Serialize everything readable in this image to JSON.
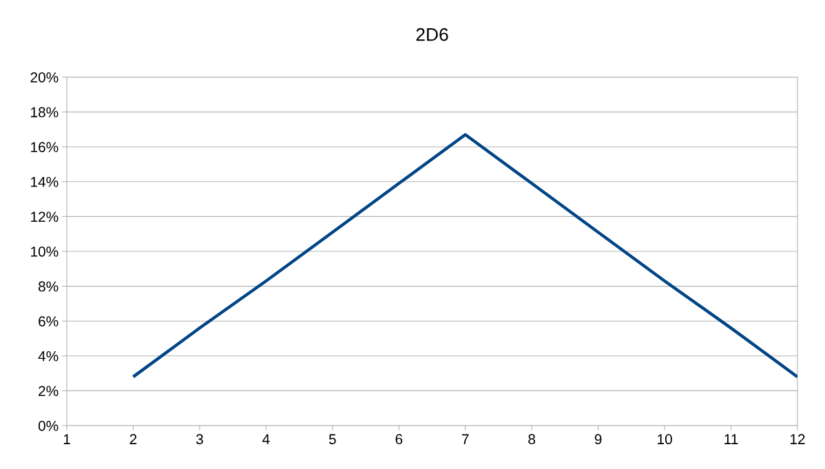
{
  "chart_data": {
    "type": "line",
    "title": "2D6",
    "x": [
      2,
      3,
      4,
      5,
      6,
      7,
      8,
      9,
      10,
      11,
      12
    ],
    "series": [
      {
        "color": "#004586",
        "values": [
          2.8,
          5.6,
          8.3,
          11.1,
          13.9,
          16.7,
          13.9,
          11.1,
          8.3,
          5.6,
          2.8
        ]
      }
    ],
    "xlim": [
      1,
      12
    ],
    "xticks": [
      1,
      2,
      3,
      4,
      5,
      6,
      7,
      8,
      9,
      10,
      11,
      12
    ],
    "ylim": [
      0,
      20
    ],
    "yticks": [
      {
        "value": 0,
        "label": "0%"
      },
      {
        "value": 2,
        "label": "2%"
      },
      {
        "value": 4,
        "label": "4%"
      },
      {
        "value": 6,
        "label": "6%"
      },
      {
        "value": 8,
        "label": "8%"
      },
      {
        "value": 10,
        "label": "10%"
      },
      {
        "value": 12,
        "label": "12%"
      },
      {
        "value": 14,
        "label": "14%"
      },
      {
        "value": 16,
        "label": "16%"
      },
      {
        "value": 18,
        "label": "18%"
      },
      {
        "value": 20,
        "label": "20%"
      }
    ],
    "grid": "y",
    "marker": "none",
    "line_style": "solid"
  }
}
